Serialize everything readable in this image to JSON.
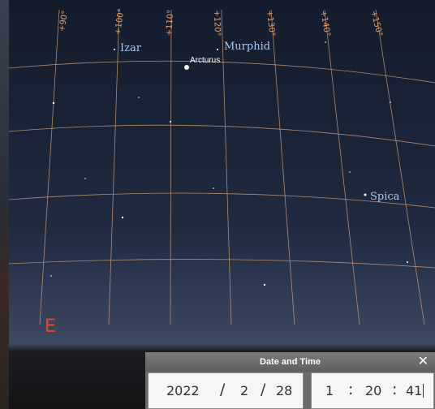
{
  "sky": {
    "longitude_labels": [
      "+90°",
      "+100°",
      "+110°",
      "+120°",
      "+130°",
      "+140°",
      "+150°"
    ],
    "stars": {
      "izar": "Izar",
      "murphid": "Murphid",
      "arcturus": "Arcturus",
      "spica": "Spica"
    },
    "cardinal_direction": "E",
    "colors": {
      "sky_top": "#141c2c",
      "sky_horizon": "#3a4660",
      "grid_line": "#c89a7a",
      "label": "#e8a070",
      "cardinal": "#e04a2a"
    }
  },
  "date_time_dialog": {
    "title": "Date and Time",
    "close_icon": "close-icon",
    "date": {
      "year": "2022",
      "separator": "/",
      "month": "2",
      "day": "28"
    },
    "time": {
      "hour": "1",
      "separator": ":",
      "minute": "20",
      "second": "41"
    }
  }
}
